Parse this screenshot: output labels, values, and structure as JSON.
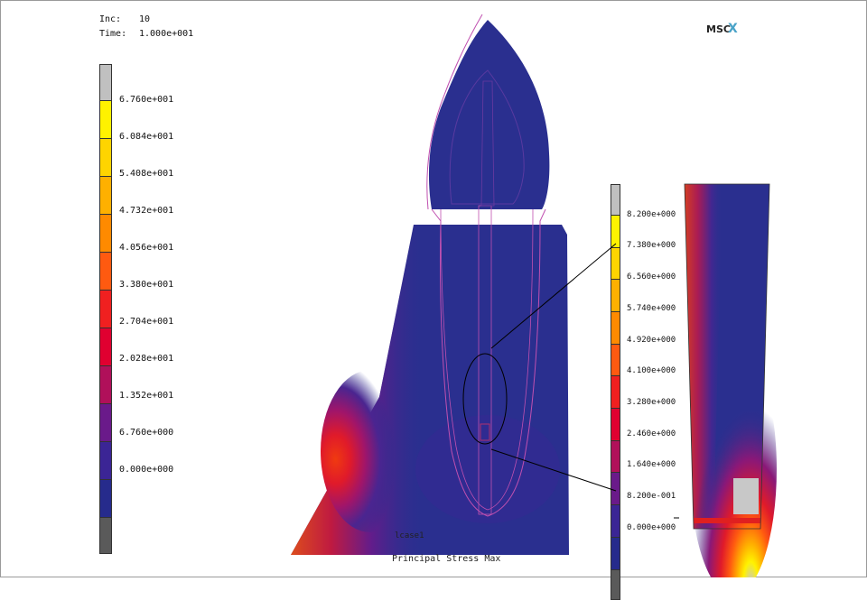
{
  "header": {
    "inc_label": "Inc:",
    "inc_value": "10",
    "time_label": "Time:",
    "time_value": "1.000e+001"
  },
  "logo": {
    "text": "MSC",
    "mark": "X"
  },
  "legend_main": {
    "labels": [
      "6.760e+001",
      "6.084e+001",
      "5.408e+001",
      "4.732e+001",
      "4.056e+001",
      "3.380e+001",
      "2.704e+001",
      "2.028e+001",
      "1.352e+001",
      "6.760e+000",
      "0.000e+000"
    ],
    "colors": [
      "#c0c0c0",
      "#fff200",
      "#ffd400",
      "#ffb000",
      "#ff8a00",
      "#ff5a10",
      "#f02020",
      "#e00030",
      "#b0105a",
      "#6a1a8a",
      "#3b2595",
      "#262b8c",
      "#5a5a5a"
    ]
  },
  "legend_detail": {
    "labels": [
      "8.200e+000",
      "7.380e+000",
      "6.560e+000",
      "5.740e+000",
      "4.920e+000",
      "4.100e+000",
      "3.280e+000",
      "2.460e+000",
      "1.640e+000",
      "8.200e-001",
      "0.000e+000"
    ],
    "colors": [
      "#c0c0c0",
      "#fff200",
      "#ffd400",
      "#ffb000",
      "#ff8a00",
      "#ff5a10",
      "#f02020",
      "#e00030",
      "#b0105a",
      "#6a1a8a",
      "#3b2595",
      "#262b8c",
      "#5a5a5a"
    ]
  },
  "bottom": {
    "case_label": "lcase1",
    "result_label": "Principal Stress Max"
  },
  "colors": {
    "model_base": "#2a2f8f",
    "outline": "#c050b0",
    "hot": "#f02020"
  }
}
